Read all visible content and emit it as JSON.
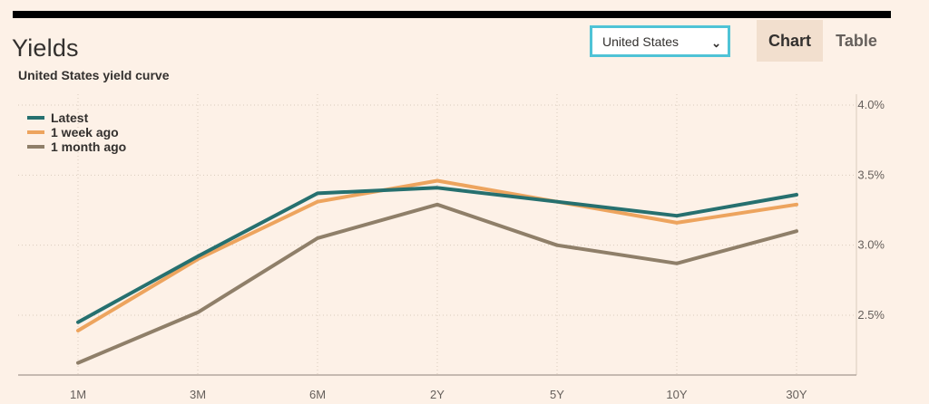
{
  "header": {
    "title": "Yields",
    "subtitle": "United States yield curve"
  },
  "country_select": {
    "value": "United States"
  },
  "tabs": [
    {
      "label": "Chart",
      "active": true
    },
    {
      "label": "Table",
      "active": false
    }
  ],
  "chart_data": {
    "type": "line",
    "title": "United States yield curve",
    "categories": [
      "1M",
      "3M",
      "6M",
      "2Y",
      "5Y",
      "10Y",
      "30Y"
    ],
    "y_tick_labels": [
      "2.5%",
      "3.0%",
      "3.5%",
      "4.0%"
    ],
    "y_ticks": [
      2.5,
      3.0,
      3.5,
      4.0
    ],
    "ylim": [
      2.1,
      4.0
    ],
    "grid": true,
    "legend_position": "top-left",
    "series": [
      {
        "name": "Latest",
        "color": "#26706f",
        "values": [
          2.45,
          2.92,
          3.37,
          3.41,
          3.31,
          3.21,
          3.36
        ]
      },
      {
        "name": "1 week ago",
        "color": "#eda45e",
        "values": [
          2.39,
          2.9,
          3.31,
          3.46,
          3.31,
          3.16,
          3.29
        ]
      },
      {
        "name": "1 month ago",
        "color": "#8f7f69",
        "values": [
          2.16,
          2.52,
          3.05,
          3.29,
          3.0,
          2.87,
          3.1
        ]
      }
    ]
  }
}
